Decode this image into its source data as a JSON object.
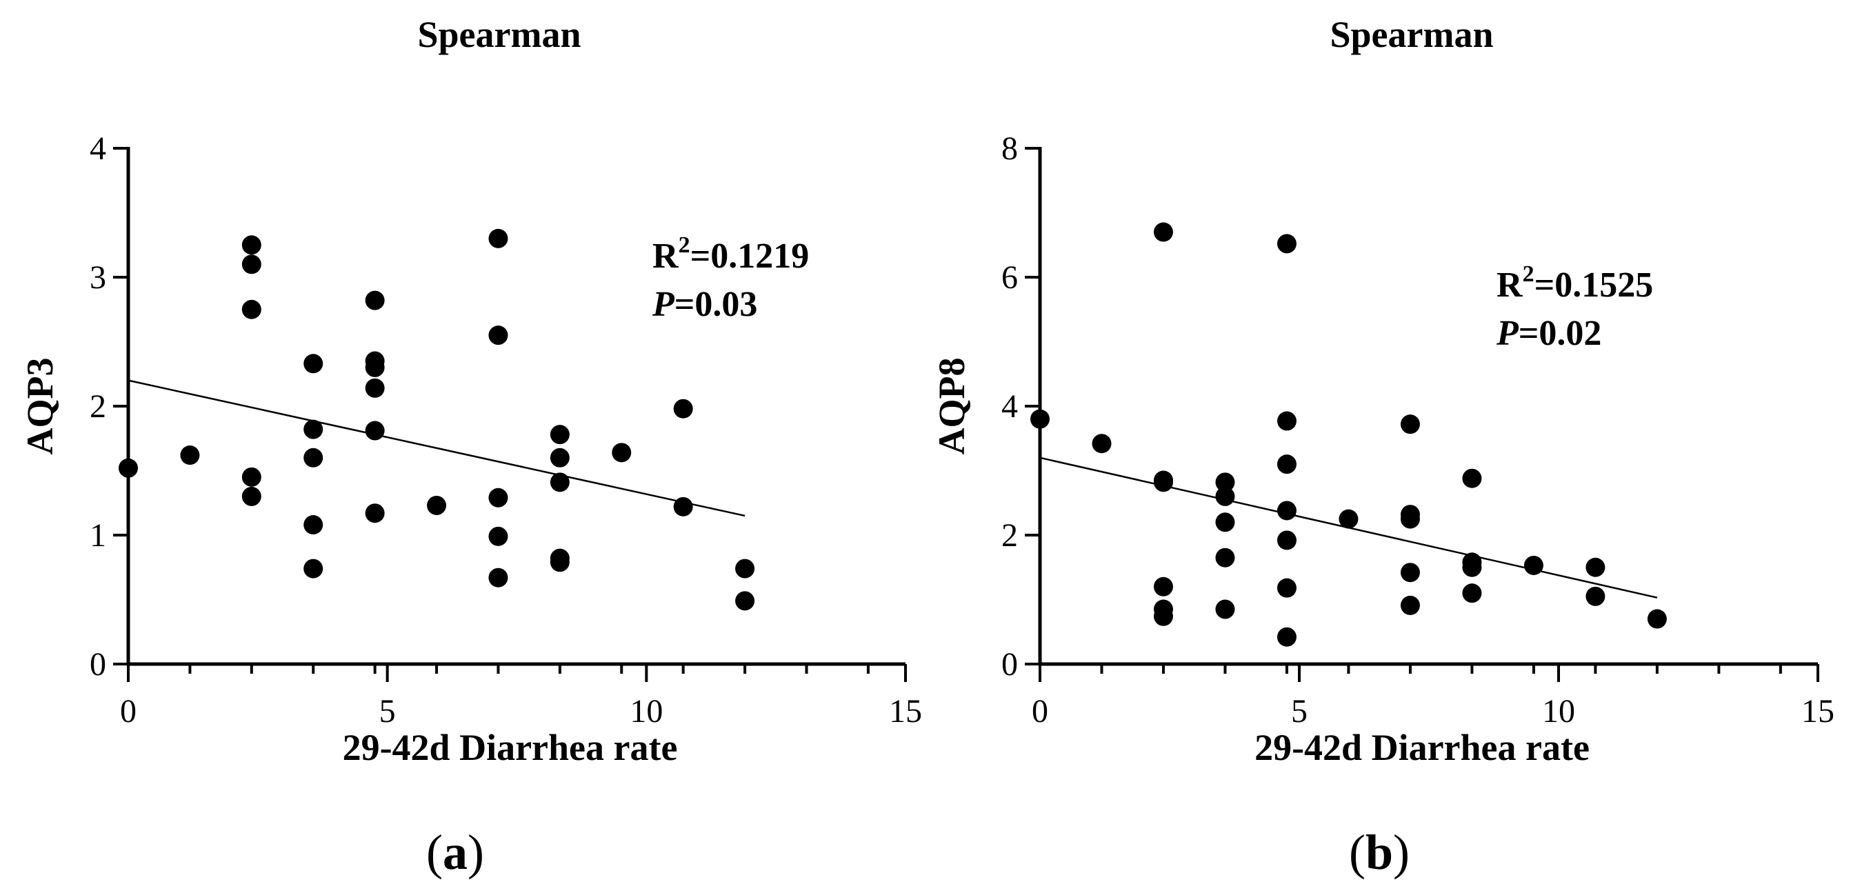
{
  "chart_data": [
    {
      "type": "scatter",
      "panel_label": "a",
      "title": "Spearman",
      "xlabel": "29-42d Diarrhea rate",
      "ylabel": "AQP3",
      "xlim": [
        0,
        15
      ],
      "ylim": [
        0,
        4
      ],
      "x_ticks": [
        0,
        5,
        10,
        15
      ],
      "y_ticks": [
        0,
        1,
        2,
        3,
        4
      ],
      "x_minor_step": 1.19,
      "annotation": {
        "r2_prefix": "R",
        "r2_sup": "2",
        "r2_value": "=0.1219",
        "p_prefix": "P",
        "p_value": "=0.03"
      },
      "trend_line": {
        "x": [
          0,
          11.9
        ],
        "y": [
          2.2,
          1.15
        ]
      },
      "points": [
        {
          "x": 0,
          "y": 1.52
        },
        {
          "x": 1.19,
          "y": 1.62
        },
        {
          "x": 2.38,
          "y": 3.25
        },
        {
          "x": 2.38,
          "y": 3.1
        },
        {
          "x": 2.38,
          "y": 2.75
        },
        {
          "x": 2.38,
          "y": 1.45
        },
        {
          "x": 2.38,
          "y": 1.3
        },
        {
          "x": 3.57,
          "y": 2.33
        },
        {
          "x": 3.57,
          "y": 1.82
        },
        {
          "x": 3.57,
          "y": 1.6
        },
        {
          "x": 3.57,
          "y": 1.08
        },
        {
          "x": 3.57,
          "y": 0.74
        },
        {
          "x": 4.76,
          "y": 2.82
        },
        {
          "x": 4.76,
          "y": 2.35
        },
        {
          "x": 4.76,
          "y": 2.3
        },
        {
          "x": 4.76,
          "y": 2.14
        },
        {
          "x": 4.76,
          "y": 1.81
        },
        {
          "x": 4.76,
          "y": 1.17
        },
        {
          "x": 5.95,
          "y": 1.23
        },
        {
          "x": 7.14,
          "y": 3.3
        },
        {
          "x": 7.14,
          "y": 2.55
        },
        {
          "x": 7.14,
          "y": 1.29
        },
        {
          "x": 7.14,
          "y": 0.99
        },
        {
          "x": 7.14,
          "y": 0.67
        },
        {
          "x": 8.33,
          "y": 1.78
        },
        {
          "x": 8.33,
          "y": 1.6
        },
        {
          "x": 8.33,
          "y": 1.41
        },
        {
          "x": 8.33,
          "y": 0.82
        },
        {
          "x": 8.33,
          "y": 0.79
        },
        {
          "x": 9.52,
          "y": 1.64
        },
        {
          "x": 10.71,
          "y": 1.98
        },
        {
          "x": 10.71,
          "y": 1.22
        },
        {
          "x": 11.9,
          "y": 0.74
        },
        {
          "x": 11.9,
          "y": 0.49
        }
      ]
    },
    {
      "type": "scatter",
      "panel_label": "b",
      "title": "Spearman",
      "xlabel": "29-42d Diarrhea rate",
      "ylabel": "AQP8",
      "xlim": [
        0,
        15
      ],
      "ylim": [
        0,
        8
      ],
      "x_ticks": [
        0,
        5,
        10,
        15
      ],
      "y_ticks": [
        0,
        2,
        4,
        6,
        8
      ],
      "x_minor_step": 1.19,
      "annotation": {
        "r2_prefix": "R",
        "r2_sup": "2",
        "r2_value": "=0.1525",
        "p_prefix": "P",
        "p_value": "=0.02"
      },
      "trend_line": {
        "x": [
          0,
          11.9
        ],
        "y": [
          3.2,
          1.03
        ]
      },
      "points": [
        {
          "x": 0,
          "y": 3.8
        },
        {
          "x": 1.19,
          "y": 3.42
        },
        {
          "x": 2.38,
          "y": 6.7
        },
        {
          "x": 2.38,
          "y": 2.85
        },
        {
          "x": 2.38,
          "y": 2.82
        },
        {
          "x": 2.38,
          "y": 1.2
        },
        {
          "x": 2.38,
          "y": 0.85
        },
        {
          "x": 2.38,
          "y": 0.74
        },
        {
          "x": 3.57,
          "y": 2.82
        },
        {
          "x": 3.57,
          "y": 2.6
        },
        {
          "x": 3.57,
          "y": 2.2
        },
        {
          "x": 3.57,
          "y": 1.65
        },
        {
          "x": 3.57,
          "y": 0.85
        },
        {
          "x": 4.76,
          "y": 6.52
        },
        {
          "x": 4.76,
          "y": 3.77
        },
        {
          "x": 4.76,
          "y": 3.1
        },
        {
          "x": 4.76,
          "y": 2.38
        },
        {
          "x": 4.76,
          "y": 1.92
        },
        {
          "x": 4.76,
          "y": 1.18
        },
        {
          "x": 4.76,
          "y": 0.42
        },
        {
          "x": 5.95,
          "y": 2.25
        },
        {
          "x": 7.14,
          "y": 3.72
        },
        {
          "x": 7.14,
          "y": 2.32
        },
        {
          "x": 7.14,
          "y": 2.25
        },
        {
          "x": 7.14,
          "y": 1.42
        },
        {
          "x": 7.14,
          "y": 0.91
        },
        {
          "x": 8.33,
          "y": 2.88
        },
        {
          "x": 8.33,
          "y": 1.58
        },
        {
          "x": 8.33,
          "y": 1.5
        },
        {
          "x": 8.33,
          "y": 1.1
        },
        {
          "x": 9.52,
          "y": 1.53
        },
        {
          "x": 10.71,
          "y": 1.5
        },
        {
          "x": 10.71,
          "y": 1.05
        },
        {
          "x": 11.9,
          "y": 0.7
        }
      ]
    }
  ]
}
